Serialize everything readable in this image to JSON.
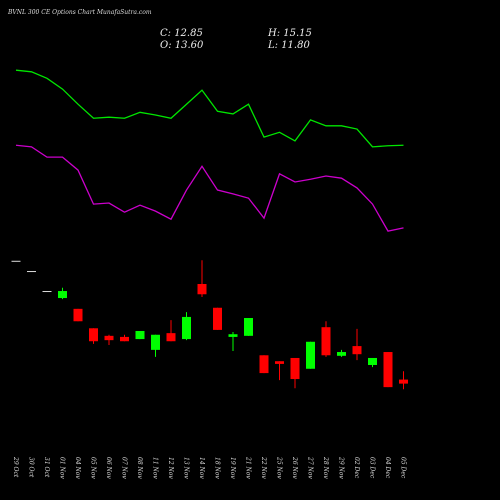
{
  "chart_data": {
    "type": "candlestick",
    "title": "BVNL 300 CE Options Chart MunafaSutra.com",
    "header": [
      "C: 12.85",
      "H: 15.15",
      "O: 13.60",
      "L: 11.80"
    ],
    "categories": [
      "29 Oct",
      "30 Oct",
      "31 Oct",
      "01 Nov",
      "04 Nov",
      "05 Nov",
      "06 Nov",
      "07 Nov",
      "08 Nov",
      "11 Nov",
      "12 Nov",
      "13 Nov",
      "14 Nov",
      "18 Nov",
      "19 Nov",
      "21 Nov",
      "22 Nov",
      "25 Nov",
      "26 Nov",
      "27 Nov",
      "28 Nov",
      "29 Nov",
      "02 Dec",
      "03 Dec",
      "04 Dec",
      "05 Dec"
    ],
    "open": [
      35.6,
      33.7,
      30.0,
      28.7,
      26.7,
      23.1,
      21.7,
      21.5,
      21.1,
      19.1,
      22.2,
      21.1,
      31.3,
      26.9,
      21.5,
      21.7,
      18.1,
      17.0,
      17.6,
      15.6,
      23.3,
      18.0,
      19.8,
      16.3,
      18.7,
      13.6
    ],
    "high": [
      35.6,
      33.7,
      30.0,
      30.6,
      26.7,
      23.1,
      21.9,
      21.9,
      22.6,
      21.9,
      24.6,
      26.1,
      35.7,
      26.9,
      22.4,
      25.0,
      18.1,
      17.0,
      17.6,
      20.6,
      24.4,
      19.1,
      23.0,
      17.6,
      18.7,
      15.15
    ],
    "low": [
      35.6,
      33.7,
      30.0,
      28.5,
      24.4,
      20.2,
      20.0,
      20.7,
      21.1,
      17.8,
      20.7,
      20.9,
      28.9,
      22.8,
      18.9,
      21.7,
      14.8,
      13.5,
      12.0,
      15.6,
      17.8,
      17.8,
      17.2,
      15.9,
      12.2,
      11.8
    ],
    "close": [
      35.6,
      33.7,
      30.0,
      30.0,
      24.4,
      20.7,
      20.9,
      20.7,
      22.6,
      21.9,
      20.7,
      25.2,
      29.4,
      22.8,
      22.0,
      25.0,
      14.8,
      16.5,
      13.7,
      20.6,
      18.1,
      18.7,
      18.3,
      17.6,
      12.2,
      12.85
    ],
    "series": [
      {
        "color": "#00e600",
        "values": [
          70.9,
          70.6,
          69.4,
          67.4,
          64.6,
          62.0,
          62.2,
          62.0,
          63.1,
          62.6,
          62.0,
          64.6,
          67.2,
          63.3,
          62.8,
          64.6,
          58.5,
          59.4,
          57.8,
          61.7,
          60.6,
          60.6,
          60.0,
          56.7,
          56.9,
          57.0
        ]
      },
      {
        "color": "#cc00cc",
        "values": [
          57.0,
          56.7,
          54.8,
          54.8,
          52.4,
          46.1,
          46.3,
          44.6,
          45.9,
          44.8,
          43.3,
          48.7,
          53.1,
          48.7,
          48.0,
          47.2,
          43.5,
          51.7,
          50.2,
          50.7,
          51.3,
          50.9,
          49.1,
          46.1,
          41.1,
          41.7
        ]
      }
    ],
    "up_color": "#00ff00",
    "down_color": "#ff0000",
    "ylim": [
      0,
      83.9
    ]
  }
}
